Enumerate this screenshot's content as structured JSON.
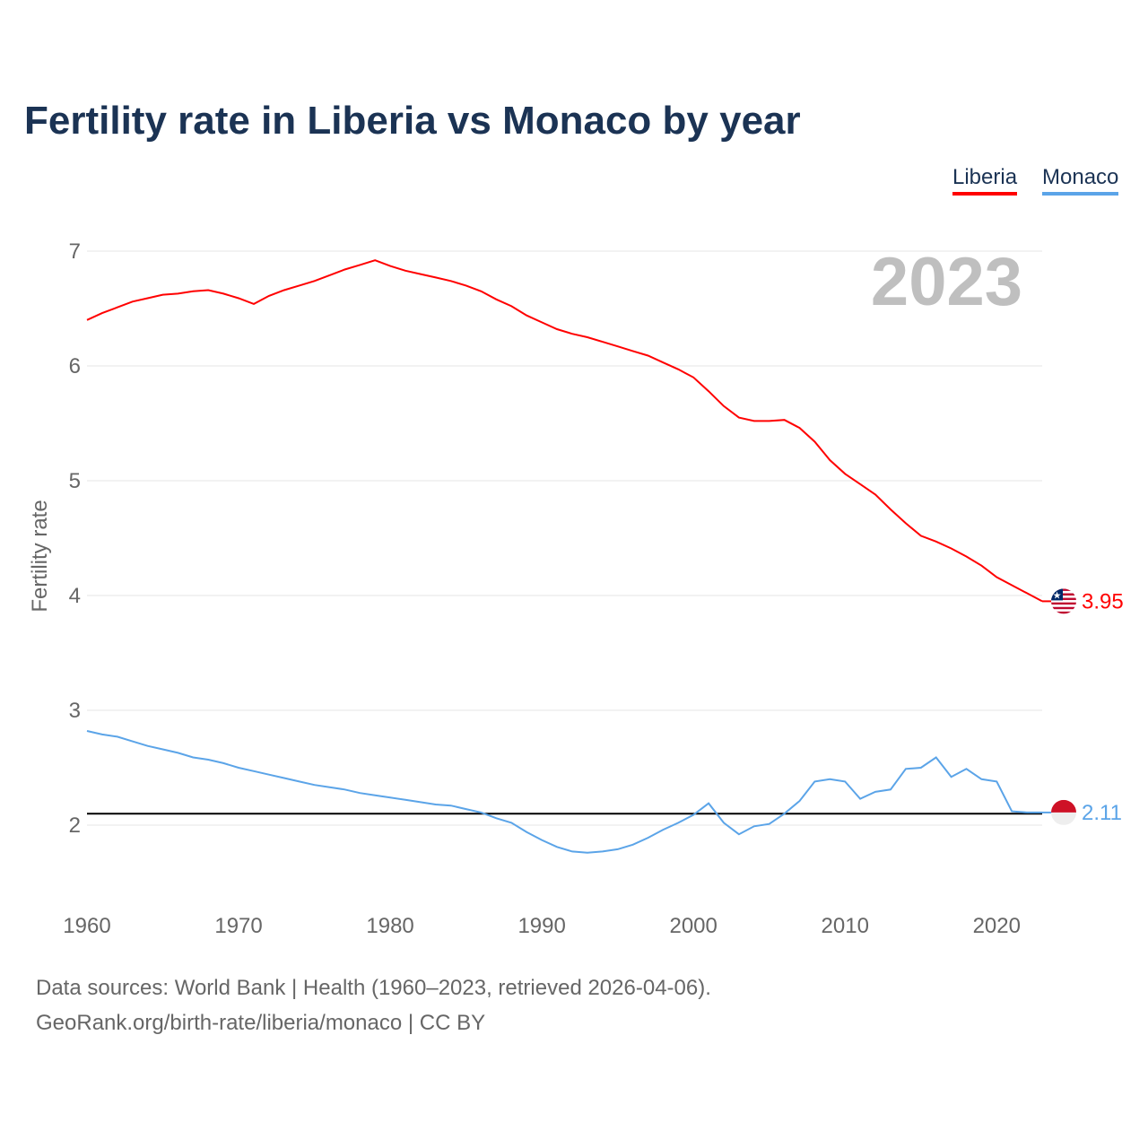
{
  "chart_data": {
    "type": "line",
    "title": "Fertility rate in Liberia vs Monaco by year",
    "xlabel": "",
    "ylabel": "Fertility rate",
    "xlim": [
      1960,
      2023
    ],
    "ylim": [
      1.5,
      7.2
    ],
    "x_ticks": [
      1960,
      1970,
      1980,
      1990,
      2000,
      2010,
      2020
    ],
    "y_ticks": [
      2,
      3,
      4,
      5,
      6,
      7
    ],
    "grid": true,
    "legend_position": "top-right",
    "year_watermark": "2023",
    "reference_line": {
      "value": 2.1,
      "color": "#000000"
    },
    "x": [
      1960,
      1961,
      1962,
      1963,
      1964,
      1965,
      1966,
      1967,
      1968,
      1969,
      1970,
      1971,
      1972,
      1973,
      1974,
      1975,
      1976,
      1977,
      1978,
      1979,
      1980,
      1981,
      1982,
      1983,
      1984,
      1985,
      1986,
      1987,
      1988,
      1989,
      1990,
      1991,
      1992,
      1993,
      1994,
      1995,
      1996,
      1997,
      1998,
      1999,
      2000,
      2001,
      2002,
      2003,
      2004,
      2005,
      2006,
      2007,
      2008,
      2009,
      2010,
      2011,
      2012,
      2013,
      2014,
      2015,
      2016,
      2017,
      2018,
      2019,
      2020,
      2021,
      2022,
      2023
    ],
    "series": [
      {
        "name": "Liberia",
        "color": "#ff0000",
        "end_label": "3.95",
        "values": [
          6.4,
          6.46,
          6.51,
          6.56,
          6.59,
          6.62,
          6.63,
          6.65,
          6.66,
          6.63,
          6.59,
          6.54,
          6.61,
          6.66,
          6.7,
          6.74,
          6.79,
          6.84,
          6.88,
          6.92,
          6.87,
          6.83,
          6.8,
          6.77,
          6.74,
          6.7,
          6.65,
          6.58,
          6.52,
          6.44,
          6.38,
          6.32,
          6.28,
          6.25,
          6.21,
          6.17,
          6.13,
          6.09,
          6.03,
          5.97,
          5.9,
          5.78,
          5.65,
          5.55,
          5.52,
          5.52,
          5.53,
          5.46,
          5.34,
          5.18,
          5.06,
          4.97,
          4.88,
          4.75,
          4.63,
          4.52,
          4.47,
          4.41,
          4.34,
          4.26,
          4.16,
          4.09,
          4.02,
          3.95
        ]
      },
      {
        "name": "Monaco",
        "color": "#5ba4e8",
        "end_label": "2.11",
        "values": [
          2.82,
          2.79,
          2.77,
          2.73,
          2.69,
          2.66,
          2.63,
          2.59,
          2.57,
          2.54,
          2.5,
          2.47,
          2.44,
          2.41,
          2.38,
          2.35,
          2.33,
          2.31,
          2.28,
          2.26,
          2.24,
          2.22,
          2.2,
          2.18,
          2.17,
          2.14,
          2.11,
          2.06,
          2.02,
          1.94,
          1.87,
          1.81,
          1.77,
          1.76,
          1.77,
          1.79,
          1.83,
          1.89,
          1.96,
          2.02,
          2.09,
          2.19,
          2.02,
          1.92,
          1.99,
          2.01,
          2.1,
          2.21,
          2.38,
          2.4,
          2.38,
          2.23,
          2.29,
          2.31,
          2.49,
          2.5,
          2.59,
          2.42,
          2.49,
          2.4,
          2.38,
          2.12,
          2.11,
          2.11
        ]
      }
    ]
  },
  "footer": {
    "sources": "Data sources: World Bank | Health (1960–2023, retrieved 2026-04-06).",
    "credit": "GeoRank.org/birth-rate/liberia/monaco | CC BY"
  }
}
